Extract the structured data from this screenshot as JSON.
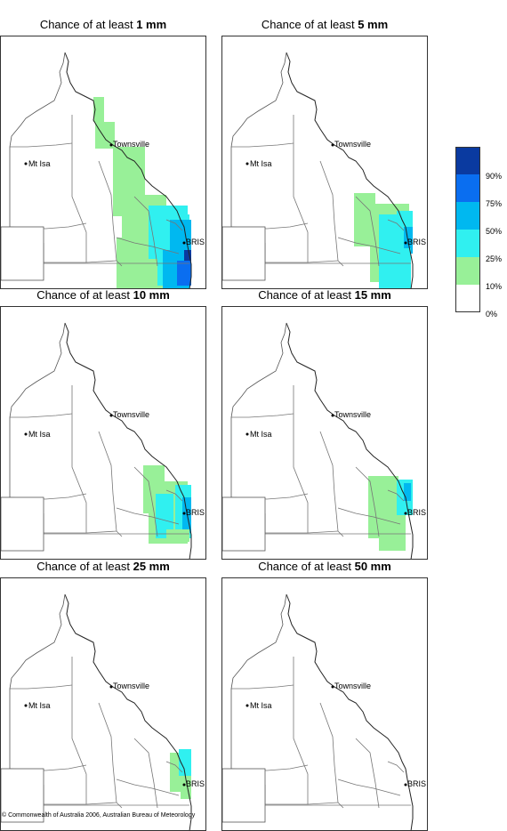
{
  "panels": [
    {
      "prefix": "Chance of at least ",
      "amount": "1 mm",
      "level": 1
    },
    {
      "prefix": "Chance of at least ",
      "amount": "5 mm",
      "level": 2
    },
    {
      "prefix": "Chance of at least ",
      "amount": "10 mm",
      "level": 3
    },
    {
      "prefix": "Chance of at least ",
      "amount": "15 mm",
      "level": 4
    },
    {
      "prefix": "Chance of at least ",
      "amount": "25 mm",
      "level": 5
    },
    {
      "prefix": "Chance of at least ",
      "amount": "50 mm",
      "level": 6
    }
  ],
  "places": {
    "townsville": "Townsville",
    "mt_isa": "Mt Isa",
    "bris": "BRIS"
  },
  "legend": {
    "colors": [
      "#0a3aa0",
      "#0a6ef0",
      "#00b8f0",
      "#30f0f0",
      "#98f098",
      "#ffffff"
    ],
    "labels": [
      "90%",
      "75%",
      "50%",
      "25%",
      "10%",
      "0%"
    ]
  },
  "credit": "© Commonwealth of Australia 2006, Australian Bureau of Meteorology"
}
